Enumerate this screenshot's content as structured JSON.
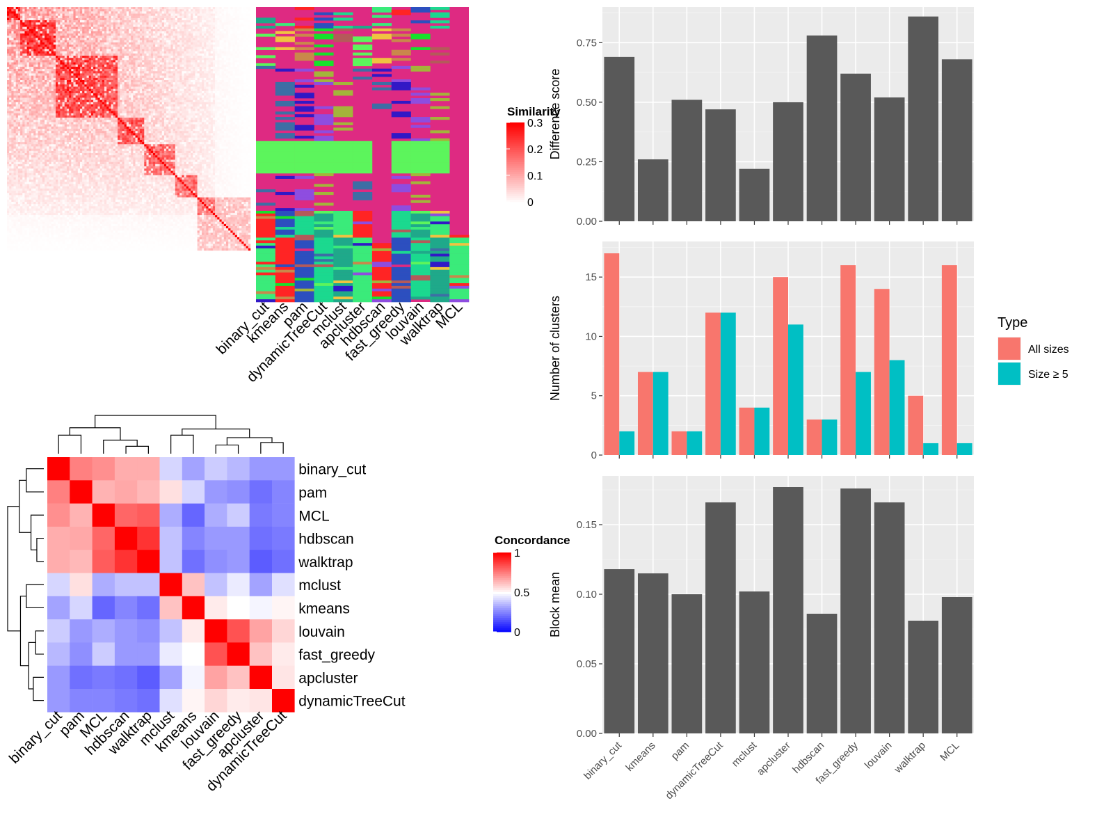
{
  "chart_data": [
    {
      "type": "heatmap",
      "id": "similarity_matrix",
      "legend_title": "Similarity",
      "legend_ticks": [
        0,
        0.1,
        0.2,
        0.3
      ],
      "legend_tick_labels": [
        "0",
        "0.1",
        "0.2",
        "0.3"
      ],
      "legend_colors": [
        "#ffffff",
        "#ff0000"
      ],
      "diagonal_value": 0.3,
      "n_terms": 110,
      "block_boundaries": [
        0,
        6,
        22,
        50,
        62,
        76,
        86,
        110
      ]
    },
    {
      "type": "heatmap",
      "id": "cluster_assignment",
      "methods": [
        "binary_cut",
        "kmeans",
        "pam",
        "dynamicTreeCut",
        "mclust",
        "apcluster",
        "hdbscan",
        "fast_greedy",
        "louvain",
        "walktrap",
        "MCL"
      ],
      "palette": [
        "#de2a82",
        "#1fa98a",
        "#5cf55c",
        "#3d6ea5",
        "#3aeb7a",
        "#f0c341",
        "#3118c6",
        "#ff2424",
        "#c9884b",
        "#8e4de0",
        "#2c4fbf",
        "#17e12b",
        "#a3b53a",
        "#1bd98f",
        "#b45a5a"
      ]
    },
    {
      "type": "heatmap",
      "id": "concordance",
      "legend_title": "Concordance",
      "legend_ticks": [
        0,
        0.5,
        1
      ],
      "legend_tick_labels": [
        "0",
        "0.5",
        "1"
      ],
      "legend_colors": [
        "#0000ff",
        "#ffffff",
        "#ff0000"
      ],
      "labels": [
        "binary_cut",
        "pam",
        "MCL",
        "hdbscan",
        "walktrap",
        "mclust",
        "kmeans",
        "louvain",
        "fast_greedy",
        "apcluster",
        "dynamicTreeCut"
      ],
      "matrix": [
        [
          1.0,
          0.75,
          0.72,
          0.66,
          0.66,
          0.42,
          0.32,
          0.4,
          0.36,
          0.3,
          0.3
        ],
        [
          0.75,
          1.0,
          0.65,
          0.67,
          0.64,
          0.56,
          0.42,
          0.3,
          0.28,
          0.22,
          0.26
        ],
        [
          0.72,
          0.65,
          1.0,
          0.8,
          0.82,
          0.34,
          0.2,
          0.34,
          0.4,
          0.24,
          0.26
        ],
        [
          0.66,
          0.67,
          0.8,
          1.0,
          0.9,
          0.38,
          0.26,
          0.3,
          0.3,
          0.22,
          0.24
        ],
        [
          0.66,
          0.64,
          0.82,
          0.9,
          1.0,
          0.38,
          0.22,
          0.28,
          0.3,
          0.18,
          0.22
        ],
        [
          0.42,
          0.56,
          0.34,
          0.38,
          0.38,
          1.0,
          0.62,
          0.38,
          0.46,
          0.32,
          0.44
        ],
        [
          0.32,
          0.42,
          0.2,
          0.26,
          0.22,
          0.62,
          1.0,
          0.54,
          0.5,
          0.48,
          0.52
        ],
        [
          0.4,
          0.3,
          0.34,
          0.3,
          0.28,
          0.38,
          0.54,
          1.0,
          0.84,
          0.68,
          0.58
        ],
        [
          0.36,
          0.28,
          0.4,
          0.3,
          0.3,
          0.46,
          0.5,
          0.84,
          1.0,
          0.62,
          0.54
        ],
        [
          0.3,
          0.22,
          0.24,
          0.22,
          0.18,
          0.32,
          0.48,
          0.68,
          0.62,
          1.0,
          0.55
        ],
        [
          0.3,
          0.26,
          0.26,
          0.24,
          0.22,
          0.44,
          0.52,
          0.58,
          0.54,
          0.55,
          1.0
        ]
      ]
    },
    {
      "type": "bar",
      "id": "difference_score",
      "categories": [
        "binary_cut",
        "kmeans",
        "pam",
        "dynamicTreeCut",
        "mclust",
        "apcluster",
        "hdbscan",
        "fast_greedy",
        "louvain",
        "walktrap",
        "MCL"
      ],
      "values": [
        0.69,
        0.26,
        0.51,
        0.47,
        0.22,
        0.5,
        0.78,
        0.62,
        0.52,
        0.86,
        0.68
      ],
      "ylabel": "Difference score",
      "ylim": [
        0,
        0.9
      ],
      "yticks": [
        0,
        0.25,
        0.5,
        0.75
      ],
      "ytick_labels": [
        "0.00",
        "0.25",
        "0.50",
        "0.75"
      ],
      "color": "#595959",
      "grid": true
    },
    {
      "type": "bar",
      "id": "number_of_clusters",
      "categories": [
        "binary_cut",
        "kmeans",
        "pam",
        "dynamicTreeCut",
        "mclust",
        "apcluster",
        "hdbscan",
        "fast_greedy",
        "louvain",
        "walktrap",
        "MCL"
      ],
      "series": [
        {
          "name": "All sizes",
          "values": [
            17,
            7,
            2,
            12,
            4,
            15,
            3,
            16,
            14,
            5,
            16
          ],
          "color": "#f8766d"
        },
        {
          "name": "Size ≥ 5",
          "values": [
            2,
            7,
            2,
            12,
            4,
            11,
            3,
            7,
            8,
            1,
            1
          ],
          "color": "#00bfc4"
        }
      ],
      "ylabel": "Number of clusters",
      "ylim": [
        0,
        18
      ],
      "yticks": [
        0,
        5,
        10,
        15
      ],
      "ytick_labels": [
        "0",
        "5",
        "10",
        "15"
      ],
      "legend_title": "Type",
      "legend_position": "right",
      "grid": true
    },
    {
      "type": "bar",
      "id": "block_mean",
      "categories": [
        "binary_cut",
        "kmeans",
        "pam",
        "dynamicTreeCut",
        "mclust",
        "apcluster",
        "hdbscan",
        "fast_greedy",
        "louvain",
        "walktrap",
        "MCL"
      ],
      "values": [
        0.118,
        0.115,
        0.1,
        0.166,
        0.102,
        0.177,
        0.086,
        0.176,
        0.166,
        0.081,
        0.098
      ],
      "ylabel": "Block mean",
      "ylim": [
        0,
        0.185
      ],
      "yticks": [
        0,
        0.05,
        0.1,
        0.15
      ],
      "ytick_labels": [
        "0.00",
        "0.05",
        "0.10",
        "0.15"
      ],
      "color": "#595959",
      "grid": true
    }
  ]
}
